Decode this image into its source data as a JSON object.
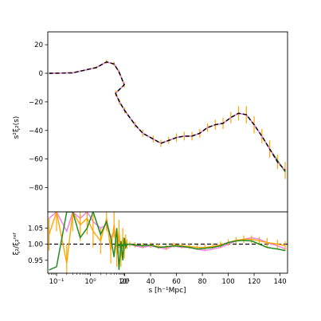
{
  "chart_data": [
    {
      "type": "line",
      "panel": "top",
      "ylabel": "s²ξ₂(s)",
      "yticks": [
        -80,
        -60,
        -40,
        -20,
        0,
        20
      ],
      "ytick_labels": [
        "−80",
        "−60",
        "−40",
        "−20",
        "0",
        "20"
      ],
      "ylim": [
        -97,
        29
      ],
      "grid": false,
      "legend": "none",
      "x_scale": "mixed: log for 0.06–12, linear for 12–150 h⁻¹Mpc",
      "series": [
        {
          "color": "#ffa500",
          "style": "errorbars",
          "x": [
            0.1,
            0.3,
            1.5,
            3,
            5,
            7,
            10,
            13,
            16,
            20,
            28,
            34,
            42,
            48,
            54,
            60,
            66,
            72,
            78,
            84,
            90,
            96,
            102,
            108,
            114,
            120,
            126,
            132,
            138,
            144
          ],
          "y": [
            0,
            0.4,
            4,
            8,
            6.5,
            1,
            -8,
            -14,
            -20,
            -26,
            -36,
            -42,
            -46,
            -49,
            -47,
            -45,
            -44,
            -44,
            -42,
            -38,
            -36,
            -35,
            -31,
            -28,
            -29,
            -36,
            -44,
            -53,
            -62,
            -68
          ],
          "err": [
            0,
            0.4,
            1,
            1.5,
            1.5,
            1.5,
            2,
            2,
            2,
            2,
            2,
            2.5,
            2.5,
            2.5,
            2.5,
            3,
            3,
            3,
            3,
            3,
            3.5,
            4,
            4,
            5,
            6,
            6,
            5,
            6,
            5,
            6
          ]
        },
        {
          "color": "#228b22",
          "style": "line",
          "x": [
            0.06,
            0.3,
            1.5,
            3,
            5,
            7,
            10,
            13,
            16,
            20,
            28,
            34,
            42,
            48,
            54,
            60,
            66,
            72,
            78,
            84,
            90,
            96,
            102,
            108,
            114,
            120,
            126,
            132,
            138,
            144
          ],
          "y": [
            0,
            0.3,
            4,
            8,
            6.5,
            1,
            -8,
            -14,
            -20,
            -26,
            -36,
            -42,
            -46,
            -49,
            -47,
            -45,
            -44,
            -44,
            -42,
            -38,
            -36,
            -35,
            -31,
            -28,
            -29,
            -36,
            -44,
            -53,
            -61,
            -69
          ]
        },
        {
          "color": "#ee82ee",
          "style": "line",
          "x": [
            0.06,
            0.3,
            1.5,
            3,
            5,
            7,
            10,
            13,
            16,
            20,
            28,
            34,
            42,
            48,
            54,
            60,
            66,
            72,
            78,
            84,
            90,
            96,
            102,
            108,
            114,
            120,
            126,
            132,
            138,
            144
          ],
          "y": [
            0,
            0.3,
            4,
            8,
            6.5,
            1,
            -8,
            -14,
            -20,
            -26,
            -36,
            -42,
            -46,
            -49,
            -47,
            -45,
            -44,
            -44,
            -42,
            -38,
            -36,
            -35,
            -31,
            -28,
            -29,
            -36,
            -44,
            -53,
            -62,
            -68
          ]
        },
        {
          "color": "#000000",
          "style": "dashed",
          "x": [
            0.06,
            0.3,
            1.5,
            3,
            5,
            7,
            10,
            13,
            16,
            20,
            28,
            34,
            42,
            48,
            54,
            60,
            66,
            72,
            78,
            84,
            90,
            96,
            102,
            108,
            114,
            120,
            126,
            132,
            138,
            144
          ],
          "y": [
            0,
            0.3,
            4,
            8,
            6.5,
            1,
            -8,
            -14,
            -20,
            -26,
            -36,
            -42,
            -46,
            -49,
            -47,
            -45,
            -44,
            -44,
            -42,
            -38,
            -36,
            -35,
            -31,
            -28,
            -29,
            -36,
            -44,
            -53,
            -62,
            -68
          ]
        }
      ]
    },
    {
      "type": "line",
      "panel": "bottom",
      "xlabel": "s [h⁻¹Mpc]",
      "ylabel": "ξ₂/ξ₂ʳᵉᶠ",
      "xticks": [
        0.1,
        1,
        10,
        20,
        40,
        60,
        80,
        100,
        120,
        140
      ],
      "xtick_labels": [
        "10⁻¹",
        "10⁰",
        "10¹",
        "20",
        "40",
        "60",
        "80",
        "100",
        "120",
        "140"
      ],
      "yticks": [
        0.95,
        1.0,
        1.05
      ],
      "ytick_labels": [
        "0.95",
        "1.00",
        "1.05"
      ],
      "ylim": [
        0.91,
        1.1
      ],
      "reference_line": 1.0,
      "grid": false,
      "legend": "none",
      "series": [
        {
          "color": "#ee82ee",
          "style": "line",
          "x": [
            0.06,
            0.1,
            0.2,
            0.3,
            0.5,
            0.8,
            1.2,
            2,
            3,
            4,
            5,
            6,
            7,
            8,
            9,
            10,
            11,
            12,
            14,
            16,
            18,
            20,
            24,
            28,
            34,
            40,
            46,
            52,
            58,
            64,
            70,
            76,
            82,
            88,
            94,
            100,
            106,
            112,
            118,
            124,
            130,
            138,
            144
          ],
          "y": [
            1.08,
            1.1,
            1.04,
            1.1,
            1.08,
            1.1,
            1.07,
            1.05,
            1.06,
            1.02,
            1.04,
            1.0,
            1.02,
            0.98,
            1.01,
            0.99,
            1.0,
            1.0,
            0.995,
            0.99,
            0.995,
            0.997,
            1.0,
            0.995,
            0.99,
            0.995,
            0.99,
            0.985,
            0.995,
            0.99,
            0.99,
            0.985,
            0.98,
            0.985,
            0.99,
            1.0,
            1.01,
            1.015,
            1.02,
            1.015,
            1.005,
            0.995,
            0.985
          ]
        },
        {
          "color": "#ffa500",
          "style": "errorbars",
          "x": [
            0.06,
            0.1,
            0.2,
            0.3,
            0.5,
            0.8,
            1.2,
            2,
            3,
            4,
            5,
            6,
            7,
            8,
            9,
            10,
            11,
            12,
            14,
            16,
            18,
            20,
            24,
            28,
            34,
            40,
            46,
            52,
            58,
            64,
            70,
            76,
            82,
            88,
            94,
            100,
            106,
            112,
            118,
            124,
            130,
            138,
            144
          ],
          "y": [
            1.03,
            1.1,
            0.94,
            1.1,
            1.06,
            1.08,
            1.04,
            1.01,
            1.08,
            0.98,
            1.06,
            0.97,
            1.04,
            0.96,
            1.02,
            0.98,
            1.01,
            1.0,
            0.995,
            1.0,
            0.995,
            0.997,
            1.0,
            0.998,
            0.995,
            0.997,
            0.993,
            0.99,
            0.997,
            0.995,
            0.993,
            0.99,
            0.99,
            0.993,
            0.998,
            1.005,
            1.012,
            1.015,
            1.015,
            1.01,
            1.005,
            1.0,
            0.995
          ],
          "err": [
            0.05,
            0.06,
            0.06,
            0.06,
            0.05,
            0.05,
            0.05,
            0.04,
            0.04,
            0.04,
            0.04,
            0.04,
            0.035,
            0.03,
            0.03,
            0.025,
            0.02,
            0.015,
            0.01,
            0.01,
            0.01,
            0.01,
            0.008,
            0.008,
            0.008,
            0.008,
            0.008,
            0.008,
            0.008,
            0.008,
            0.008,
            0.008,
            0.008,
            0.008,
            0.01,
            0.01,
            0.01,
            0.012,
            0.012,
            0.012,
            0.014,
            0.014,
            0.014
          ]
        },
        {
          "color": "#228b22",
          "style": "line",
          "x": [
            0.06,
            0.1,
            0.2,
            0.3,
            0.5,
            0.8,
            1.2,
            2,
            3,
            4,
            5,
            6,
            7,
            8,
            9,
            10,
            11,
            12,
            14,
            16,
            18,
            20,
            24,
            28,
            34,
            40,
            46,
            52,
            58,
            64,
            70,
            76,
            82,
            88,
            94,
            100,
            106,
            112,
            118,
            124,
            130,
            138,
            144
          ],
          "y": [
            0.92,
            0.93,
            1.1,
            1.1,
            1.02,
            1.05,
            1.1,
            1.03,
            1.07,
            1.02,
            0.96,
            1.05,
            0.92,
            1.01,
            0.95,
            1.02,
            0.99,
            1.0,
            0.995,
            1.0,
            0.995,
            0.998,
            1.0,
            0.997,
            0.995,
            0.997,
            0.99,
            0.992,
            0.995,
            0.993,
            0.99,
            0.985,
            0.987,
            0.99,
            0.995,
            1.005,
            1.01,
            1.012,
            1.01,
            1.0,
            0.99,
            0.985,
            0.98
          ]
        }
      ]
    }
  ]
}
